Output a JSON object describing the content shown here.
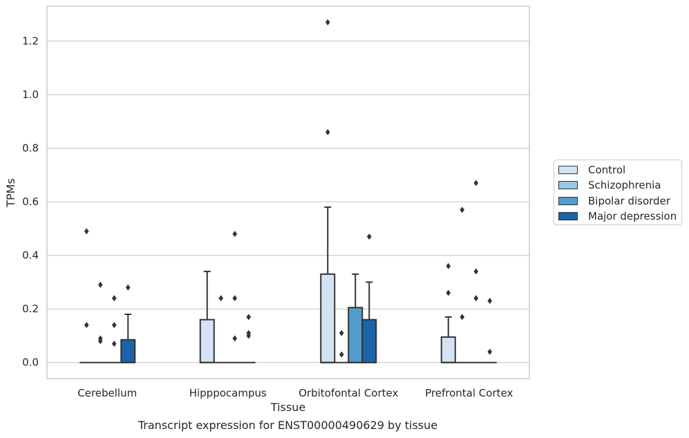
{
  "caption": "Transcript expression for ENST00000490629 by tissue",
  "chart_data": {
    "type": "box",
    "xlabel": "Tissue",
    "ylabel": "TPMs",
    "ylim": [
      -0.06,
      1.33
    ],
    "yticks": [
      0.0,
      0.2,
      0.4,
      0.6,
      0.8,
      1.0,
      1.2
    ],
    "ytick_labels": [
      "0.0",
      "0.2",
      "0.4",
      "0.6",
      "0.8",
      "1.0",
      "1.2"
    ],
    "grid": "horizontal",
    "legend_position": "right",
    "categories": [
      "Cerebellum",
      "Hipppocampus",
      "Orbitofontal Cortex",
      "Prefrontal Cortex"
    ],
    "series": [
      {
        "name": "Control",
        "color": "#d3e3f3",
        "boxes": [
          {
            "category": "Cerebellum",
            "q1": 0.0,
            "median": 0.0,
            "q3": 0.0,
            "whisker_low": 0.0,
            "whisker_high": 0.0,
            "outliers": [
              0.49,
              0.14
            ]
          },
          {
            "category": "Hipppocampus",
            "q1": 0.0,
            "median": 0.0,
            "q3": 0.16,
            "whisker_low": 0.0,
            "whisker_high": 0.34,
            "outliers": []
          },
          {
            "category": "Orbitofontal Cortex",
            "q1": 0.0,
            "median": 0.0,
            "q3": 0.33,
            "whisker_low": 0.0,
            "whisker_high": 0.58,
            "outliers": [
              1.27,
              0.86
            ]
          },
          {
            "category": "Prefrontal Cortex",
            "q1": 0.0,
            "median": 0.0,
            "q3": 0.095,
            "whisker_low": 0.0,
            "whisker_high": 0.17,
            "outliers": [
              0.36,
              0.26
            ]
          }
        ]
      },
      {
        "name": "Schizophrenia",
        "color": "#9ac8e0",
        "boxes": [
          {
            "category": "Cerebellum",
            "q1": 0.0,
            "median": 0.0,
            "q3": 0.0,
            "whisker_low": 0.0,
            "whisker_high": 0.0,
            "outliers": [
              0.29,
              0.09,
              0.08
            ]
          },
          {
            "category": "Hipppocampus",
            "q1": 0.0,
            "median": 0.0,
            "q3": 0.0,
            "whisker_low": 0.0,
            "whisker_high": 0.0,
            "outliers": [
              0.24
            ]
          },
          {
            "category": "Orbitofontal Cortex",
            "q1": 0.0,
            "median": 0.0,
            "q3": 0.0,
            "whisker_low": 0.0,
            "whisker_high": 0.0,
            "outliers": [
              0.11,
              0.03
            ]
          },
          {
            "category": "Prefrontal Cortex",
            "q1": 0.0,
            "median": 0.0,
            "q3": 0.0,
            "whisker_low": 0.0,
            "whisker_high": 0.0,
            "outliers": [
              0.57,
              0.17
            ]
          }
        ]
      },
      {
        "name": "Bipolar disorder",
        "color": "#529dcc",
        "boxes": [
          {
            "category": "Cerebellum",
            "q1": 0.0,
            "median": 0.0,
            "q3": 0.0,
            "whisker_low": 0.0,
            "whisker_high": 0.0,
            "outliers": [
              0.24,
              0.14,
              0.07
            ]
          },
          {
            "category": "Hipppocampus",
            "q1": 0.0,
            "median": 0.0,
            "q3": 0.0,
            "whisker_low": 0.0,
            "whisker_high": 0.0,
            "outliers": [
              0.48,
              0.24,
              0.09
            ]
          },
          {
            "category": "Orbitofontal Cortex",
            "q1": 0.0,
            "median": 0.0,
            "q3": 0.205,
            "whisker_low": 0.0,
            "whisker_high": 0.33,
            "outliers": []
          },
          {
            "category": "Prefrontal Cortex",
            "q1": 0.0,
            "median": 0.0,
            "q3": 0.0,
            "whisker_low": 0.0,
            "whisker_high": 0.0,
            "outliers": [
              0.67,
              0.34,
              0.24
            ]
          }
        ]
      },
      {
        "name": "Major depression",
        "color": "#1c64aa",
        "boxes": [
          {
            "category": "Cerebellum",
            "q1": 0.0,
            "median": 0.0,
            "q3": 0.085,
            "whisker_low": 0.0,
            "whisker_high": 0.18,
            "outliers": [
              0.28
            ]
          },
          {
            "category": "Hipppocampus",
            "q1": 0.0,
            "median": 0.0,
            "q3": 0.0,
            "whisker_low": 0.0,
            "whisker_high": 0.0,
            "outliers": [
              0.17,
              0.11,
              0.1
            ]
          },
          {
            "category": "Orbitofontal Cortex",
            "q1": 0.0,
            "median": 0.0,
            "q3": 0.16,
            "whisker_low": 0.0,
            "whisker_high": 0.3,
            "outliers": [
              0.47
            ]
          },
          {
            "category": "Prefrontal Cortex",
            "q1": 0.0,
            "median": 0.0,
            "q3": 0.0,
            "whisker_low": 0.0,
            "whisker_high": 0.0,
            "outliers": [
              0.23,
              0.04
            ]
          }
        ]
      }
    ]
  }
}
